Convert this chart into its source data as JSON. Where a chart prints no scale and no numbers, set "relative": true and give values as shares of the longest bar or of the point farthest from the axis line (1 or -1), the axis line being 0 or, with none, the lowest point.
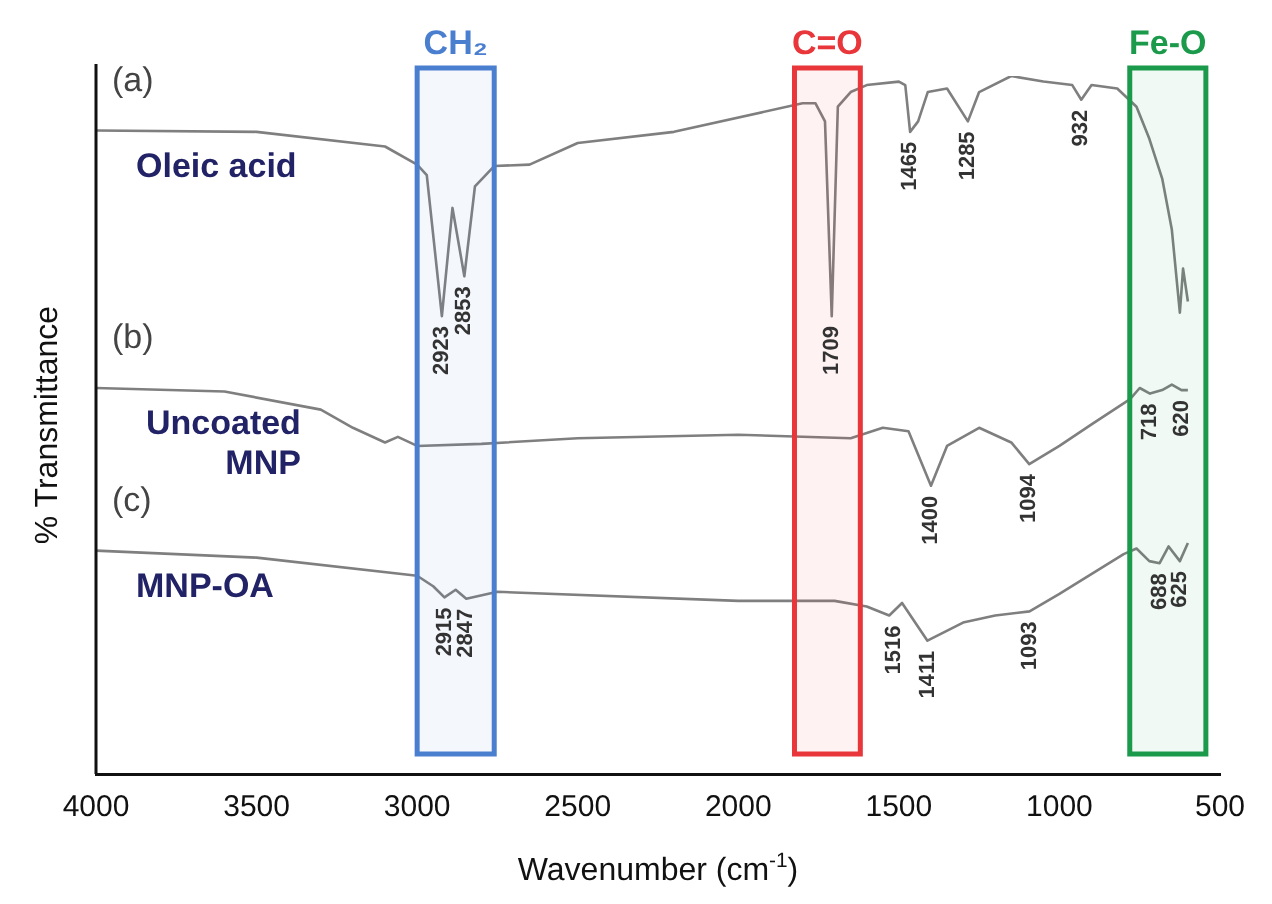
{
  "chart_data": {
    "type": "line",
    "relative": true,
    "xlabel": "Wavenumber (cm$^{-1}$)",
    "ylabel": "% Transmittance",
    "xlim": [
      4000,
      500
    ],
    "xticks": [
      4000,
      3500,
      3000,
      2500,
      2000,
      1500,
      1000,
      500
    ],
    "grid": false,
    "legend": false,
    "marker": "none",
    "line_style": "solid",
    "series": [
      {
        "name": "Oleic acid",
        "color": "#7f7f7f",
        "x": [
          4000,
          3500,
          3100,
          3000,
          2970,
          2923,
          2890,
          2853,
          2820,
          2760,
          2650,
          2500,
          2200,
          1800,
          1760,
          1730,
          1709,
          1690,
          1650,
          1600,
          1500,
          1480,
          1465,
          1440,
          1410,
          1350,
          1285,
          1250,
          1150,
          1050,
          960,
          932,
          900,
          820,
          760,
          720,
          680,
          650,
          625,
          615,
          600
        ],
        "values": [
          0.922,
          0.92,
          0.899,
          0.873,
          0.858,
          0.656,
          0.811,
          0.713,
          0.842,
          0.871,
          0.873,
          0.904,
          0.92,
          0.961,
          0.961,
          0.935,
          0.656,
          0.956,
          0.977,
          0.987,
          0.992,
          0.987,
          0.92,
          0.935,
          0.977,
          0.982,
          0.935,
          0.977,
          1,
          0.992,
          0.987,
          0.966,
          0.987,
          0.982,
          0.956,
          0.91,
          0.853,
          0.78,
          0.661,
          0.724,
          0.677
        ]
      },
      {
        "name": "Uncoated MNP",
        "color": "#7f7f7f",
        "x": [
          4000,
          3600,
          3300,
          3200,
          3100,
          3060,
          3000,
          2800,
          2500,
          2000,
          1650,
          1550,
          1470,
          1400,
          1350,
          1250,
          1150,
          1094,
          1000,
          900,
          780,
          750,
          718,
          680,
          650,
          620,
          600
        ],
        "values": [
          0.553,
          0.548,
          0.522,
          0.496,
          0.475,
          0.483,
          0.47,
          0.473,
          0.481,
          0.486,
          0.481,
          0.496,
          0.491,
          0.413,
          0.47,
          0.496,
          0.475,
          0.444,
          0.47,
          0.501,
          0.537,
          0.553,
          0.545,
          0.55,
          0.558,
          0.55,
          0.55
        ]
      },
      {
        "name": "MNP-OA",
        "color": "#7f7f7f",
        "x": [
          4000,
          3500,
          3000,
          2950,
          2915,
          2880,
          2847,
          2750,
          2000,
          1700,
          1600,
          1530,
          1490,
          1411,
          1300,
          1200,
          1093,
          1000,
          800,
          760,
          720,
          688,
          660,
          625,
          600
        ],
        "values": [
          0.32,
          0.31,
          0.284,
          0.269,
          0.253,
          0.264,
          0.251,
          0.261,
          0.248,
          0.248,
          0.24,
          0.227,
          0.245,
          0.191,
          0.217,
          0.227,
          0.233,
          0.258,
          0.315,
          0.323,
          0.305,
          0.302,
          0.326,
          0.305,
          0.331
        ]
      }
    ],
    "bands": [
      {
        "axis": "x",
        "from": 3000,
        "to": 2760,
        "label": "CH₂",
        "color": "#4a7fcf"
      },
      {
        "axis": "x",
        "from": 1825,
        "to": 1620,
        "label": "C=O",
        "color": "#e8363a"
      },
      {
        "axis": "x",
        "from": 781,
        "to": 544,
        "label": "Fe-O",
        "color": "#1a9a4a"
      }
    ],
    "annotations": [
      "(a)",
      "(b)",
      "(c)",
      {
        "text": "2923",
        "x": 2923,
        "y": 0.656
      },
      {
        "text": "2853",
        "x": 2853,
        "y": 0.713
      },
      {
        "text": "1709",
        "x": 1709,
        "y": 0.656
      },
      {
        "text": "1465",
        "x": 1465,
        "y": 0.92
      },
      {
        "text": "1285",
        "x": 1285,
        "y": 0.935
      },
      {
        "text": "932",
        "x": 932,
        "y": 0.966
      },
      {
        "text": "1400",
        "x": 1400,
        "y": 0.413
      },
      {
        "text": "1094",
        "x": 1094,
        "y": 0.444
      },
      {
        "text": "718",
        "x": 718,
        "y": 0.545
      },
      {
        "text": "620",
        "x": 620,
        "y": 0.55
      },
      {
        "text": "2915",
        "x": 2915,
        "y": 0.253
      },
      {
        "text": "2847",
        "x": 2847,
        "y": 0.251
      },
      {
        "text": "1516",
        "x": 1516,
        "y": 0.227
      },
      {
        "text": "1411",
        "x": 1411,
        "y": 0.191
      },
      {
        "text": "1093",
        "x": 1093,
        "y": 0.233
      },
      {
        "text": "688",
        "x": 688,
        "y": 0.302
      },
      {
        "text": "625",
        "x": 625,
        "y": 0.305
      }
    ]
  }
}
